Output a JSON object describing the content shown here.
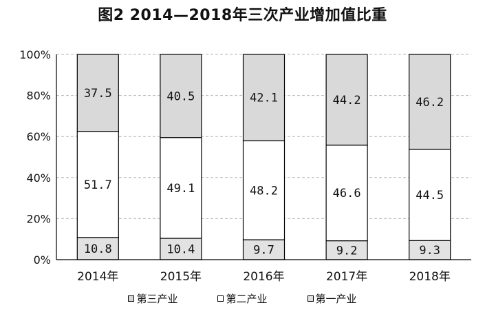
{
  "chart_data": {
    "type": "bar",
    "stacked": true,
    "title": "图2 2014—2018年三次产业增加值比重",
    "categories": [
      "2014年",
      "2015年",
      "2016年",
      "2017年",
      "2018年"
    ],
    "series": [
      {
        "name": "第一产业",
        "values": [
          10.8,
          10.4,
          9.7,
          9.2,
          9.3
        ],
        "color": "#e2e2e2",
        "labels": [
          "10.8",
          "10.4",
          "9.7",
          "9.2",
          "9.3"
        ]
      },
      {
        "name": "第二产业",
        "values": [
          51.7,
          49.1,
          48.2,
          46.6,
          44.5
        ],
        "color": "#ffffff",
        "labels": [
          "51.7",
          "49.1",
          "48.2",
          "46.6",
          "44.5"
        ]
      },
      {
        "name": "第三产业",
        "values": [
          37.5,
          40.5,
          42.1,
          44.2,
          46.2
        ],
        "color": "#d9d9d9",
        "labels": [
          "37.5",
          "40.5",
          "42.1",
          "44.2",
          "46.2"
        ]
      }
    ],
    "yticks": [
      "0%",
      "20%",
      "40%",
      "60%",
      "80%",
      "100%"
    ],
    "ylim": [
      0,
      100
    ],
    "grid": true,
    "legend_position": "bottom",
    "legend": [
      "第三产业",
      "第二产业",
      "第一产业"
    ],
    "axis_color": "#000000",
    "grid_color": "#b5b5b5"
  }
}
